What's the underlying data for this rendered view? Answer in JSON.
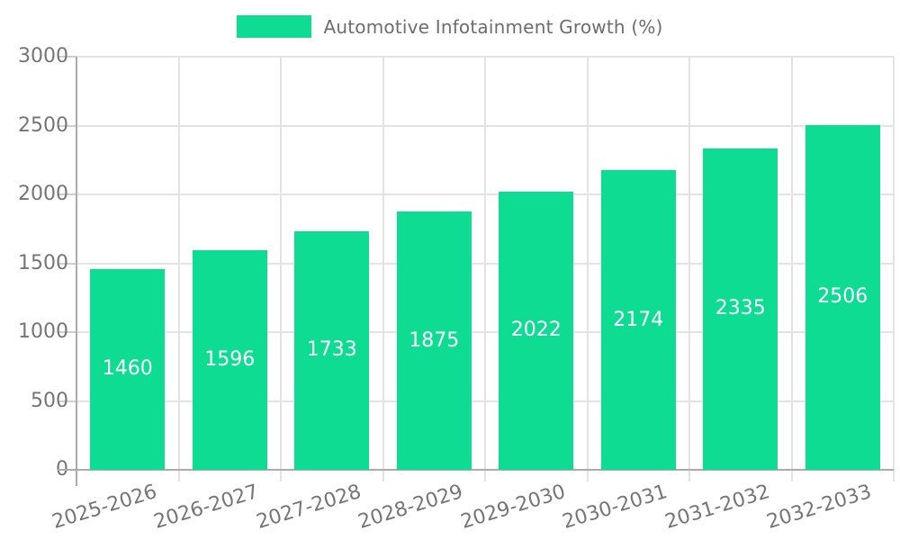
{
  "chart_data": {
    "type": "bar",
    "title": "Automotive Infotainment Growth (%)",
    "legend_label": "Automotive Infotainment Growth (%)",
    "legend_position": "top-center",
    "categories": [
      "2025-2026",
      "2026-2027",
      "2027-2028",
      "2028-2029",
      "2029-2030",
      "2030-2031",
      "2031-2032",
      "2032-2033"
    ],
    "values": [
      1460,
      1596,
      1733,
      1875,
      2022,
      2174,
      2335,
      2506
    ],
    "value_labels_inside_bars": true,
    "xlabel": "",
    "ylabel": "",
    "ylim": [
      0,
      3000
    ],
    "yticks": [
      0,
      500,
      1000,
      1500,
      2000,
      2500,
      3000
    ],
    "grid": true,
    "x_tick_label_rotation_deg": -17,
    "colors": {
      "bar": "#0edc92",
      "bar_value_text": "#ffffff",
      "axis_line": "#ababab",
      "gridline": "#e3e3e3",
      "tick_label_text": "#757575",
      "legend_text": "#6d6d6d",
      "background": "#ffffff"
    }
  }
}
